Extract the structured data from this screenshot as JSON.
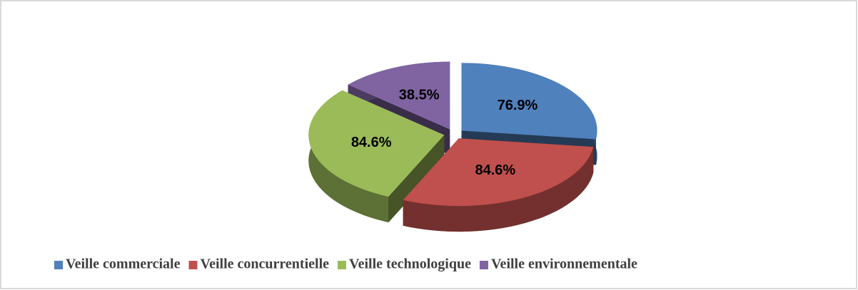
{
  "chart_data": {
    "type": "pie3d",
    "categories": [
      "Veille commerciale",
      "Veille concurrentielle",
      "Veille technologique",
      "Veille environnementale"
    ],
    "values": [
      76.9,
      84.6,
      84.6,
      38.5
    ],
    "value_labels": [
      "76.9%",
      "84.6%",
      "84.6%",
      "38.5%"
    ],
    "colors": [
      "#4f81bd",
      "#c0504d",
      "#9bbb59",
      "#8064a2"
    ],
    "legend": "bottom"
  }
}
